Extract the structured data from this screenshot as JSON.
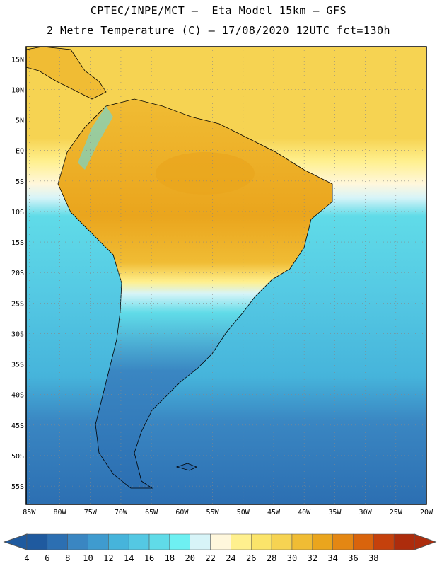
{
  "header": {
    "title_line1": "CPTEC/INPE/MCT –  Eta Model 15km – GFS",
    "title_line2": "2 Metre Temperature (C) – 17/08/2020 12UTC fct=130h"
  },
  "map": {
    "lat_labels": [
      "15N",
      "10N",
      "5N",
      "EQ",
      "5S",
      "10S",
      "15S",
      "20S",
      "25S",
      "30S",
      "35S",
      "40S",
      "45S",
      "50S",
      "55S"
    ],
    "lon_labels": [
      "85W",
      "80W",
      "75W",
      "70W",
      "65W",
      "60W",
      "55W",
      "50W",
      "45W",
      "40W",
      "35W",
      "30W",
      "25W",
      "20W"
    ],
    "lat_range": [
      17,
      -58
    ],
    "lon_range": [
      -85.5,
      -20
    ],
    "gridlines": true
  },
  "colorbar": {
    "levels": [
      "4",
      "6",
      "8",
      "10",
      "12",
      "14",
      "16",
      "18",
      "20",
      "22",
      "24",
      "26",
      "28",
      "30",
      "32",
      "34",
      "36",
      "38"
    ],
    "colors": [
      "#1f5a9f",
      "#2c6fb2",
      "#3a86c2",
      "#3f9bcf",
      "#46b4db",
      "#54c8e3",
      "#60dbe8",
      "#6ef0f2",
      "#d7f4f8",
      "#fff7dc",
      "#fff08e",
      "#fbe46a",
      "#f6d352",
      "#f0bc34",
      "#eaa51d",
      "#e48713",
      "#d9640c",
      "#c5410c",
      "#ad2c0c"
    ],
    "extend_low_color": "#1f5a9f",
    "extend_high_color": "#ad2c0c"
  }
}
